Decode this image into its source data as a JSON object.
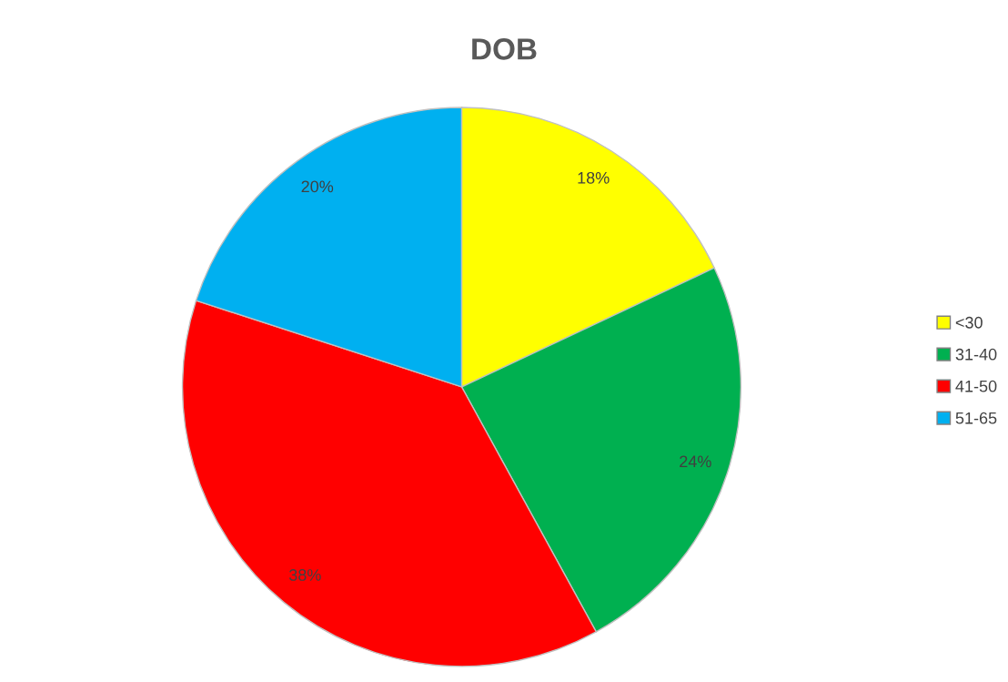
{
  "chart_data": {
    "type": "pie",
    "title": "DOB",
    "categories": [
      "<30",
      "31-40",
      "41-50",
      "51-65"
    ],
    "values": [
      18,
      24,
      38,
      20
    ],
    "colors": [
      "#ffff00",
      "#00b050",
      "#ff0000",
      "#00b0f0"
    ],
    "value_labels": [
      "18%",
      "24%",
      "38%",
      "20%"
    ],
    "legend": "right"
  }
}
